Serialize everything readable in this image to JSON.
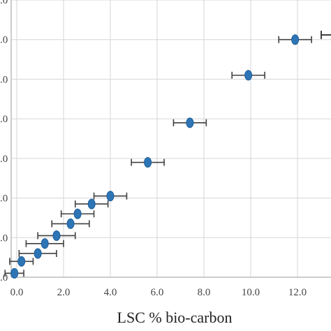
{
  "chart_data": {
    "type": "scatter",
    "title": "",
    "xlabel": "LSC % bio-carbon",
    "ylabel": "",
    "xlim": [
      -0.2,
      13.0
    ],
    "ylim": [
      0.0,
      14.0
    ],
    "grid": true,
    "x_ticks": [
      "0.0",
      "2.0",
      "4.0",
      "6.0",
      "8.0",
      "10.0",
      "12.0"
    ],
    "y_ticks": [
      ".0",
      ".0",
      ".0",
      ".0",
      ".0",
      ".0",
      ".0",
      ".0",
      ".0"
    ],
    "marker_color": "#2e75b6",
    "errorbar_color": "#404040",
    "points": [
      {
        "x": -0.1,
        "y": 0.2,
        "xerr": 0.4
      },
      {
        "x": 0.2,
        "y": 0.8,
        "xerr": 0.5
      },
      {
        "x": 0.9,
        "y": 1.2,
        "xerr": 0.8
      },
      {
        "x": 1.2,
        "y": 1.7,
        "xerr": 0.8
      },
      {
        "x": 1.7,
        "y": 2.1,
        "xerr": 0.8
      },
      {
        "x": 2.3,
        "y": 2.7,
        "xerr": 0.8
      },
      {
        "x": 2.6,
        "y": 3.2,
        "xerr": 0.7
      },
      {
        "x": 3.2,
        "y": 3.7,
        "xerr": 0.7
      },
      {
        "x": 4.0,
        "y": 4.1,
        "xerr": 0.7
      },
      {
        "x": 5.6,
        "y": 5.8,
        "xerr": 0.7
      },
      {
        "x": 7.4,
        "y": 7.8,
        "xerr": 0.7
      },
      {
        "x": 9.9,
        "y": 10.2,
        "xerr": 0.7
      },
      {
        "x": 11.9,
        "y": 12.0,
        "xerr": 0.7
      }
    ]
  }
}
